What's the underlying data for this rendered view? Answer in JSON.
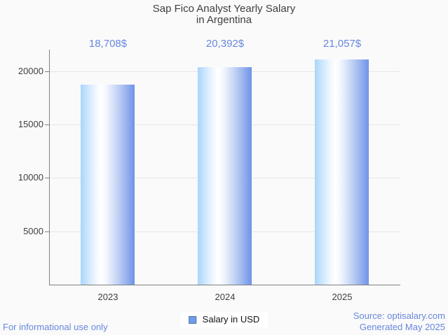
{
  "title": {
    "line1": "Sap Fico Analyst Yearly Salary",
    "line2": "in Argentina"
  },
  "chart_data": {
    "type": "bar",
    "title": "Sap Fico Analyst Yearly Salary in Argentina",
    "categories": [
      "2023",
      "2024",
      "2025"
    ],
    "series": [
      {
        "name": "Salary in USD",
        "values": [
          18708,
          20392,
          21057
        ]
      }
    ],
    "value_labels": [
      "18,708$",
      "20,392$",
      "21,057$"
    ],
    "xlabel": "",
    "ylabel": "",
    "ylim": [
      0,
      22000
    ],
    "yticks": [
      5000,
      10000,
      15000,
      20000
    ],
    "ytick_labels": [
      "5000",
      "10000",
      "15000",
      "20000"
    ],
    "grid": true,
    "legend_position": "bottom"
  },
  "legend": {
    "label": "Salary in USD",
    "swatch_color": "#6d9eeb"
  },
  "footer": {
    "left": "For informational use only",
    "source": "Source: optisalary.com",
    "generated": "Generated May 2025"
  },
  "colors": {
    "accent_blue": "#6787de",
    "text_dark": "#404040",
    "gridline": "#e6e6e6",
    "axis": "#808080",
    "background": "#fafafa",
    "bar_gradient_left": "#a9d5fb",
    "bar_gradient_mid": "#ffffff",
    "bar_gradient_right": "#6d93e8"
  }
}
